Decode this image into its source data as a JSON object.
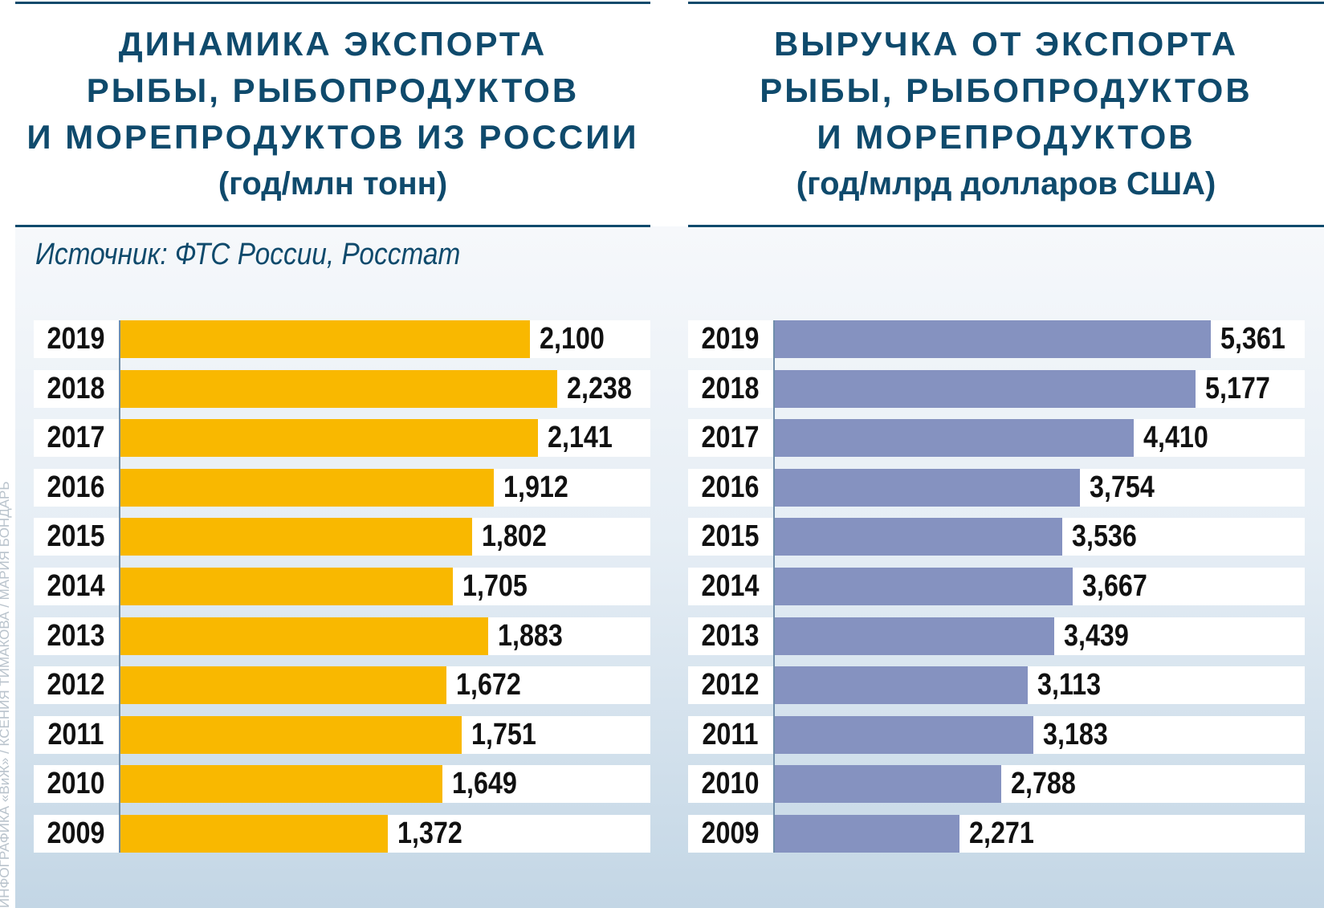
{
  "colors": {
    "title": "#0f4a6c",
    "left_bar": "#f9b800",
    "right_bar": "#8592c0"
  },
  "credit": "ИНФОГРАФИКА «ВиЖ» / КСЕНИЯ ТИМАКОВА / МАРИЯ БОНДАРЬ",
  "source": "Источник: ФТС России, Росстат",
  "chart_data": [
    {
      "type": "bar",
      "orientation": "horizontal",
      "title_lines": [
        "ДИНАМИКА ЭКСПОРТА",
        "РЫБЫ, РЫБОПРОДУКТОВ",
        "И МОРЕПРОДУКТОВ ИЗ РОССИИ"
      ],
      "subtitle": "(год/млн тонн)",
      "categories": [
        "2019",
        "2018",
        "2017",
        "2016",
        "2015",
        "2014",
        "2013",
        "2012",
        "2011",
        "2010",
        "2009"
      ],
      "values": [
        2.1,
        2.238,
        2.141,
        1.912,
        1.802,
        1.705,
        1.883,
        1.672,
        1.751,
        1.649,
        1.372
      ],
      "labels": [
        "2,100",
        "2,238",
        "2,141",
        "1,912",
        "1,802",
        "1,705",
        "1,883",
        "1,672",
        "1,751",
        "1,649",
        "1,372"
      ]
    },
    {
      "type": "bar",
      "orientation": "horizontal",
      "title_lines": [
        "ВЫРУЧКА ОТ ЭКСПОРТА",
        "РЫБЫ, РЫБОПРОДУКТОВ",
        "И МОРЕПРОДУКТОВ"
      ],
      "subtitle": "(год/млрд долларов США)",
      "categories": [
        "2019",
        "2018",
        "2017",
        "2016",
        "2015",
        "2014",
        "2013",
        "2012",
        "2011",
        "2010",
        "2009"
      ],
      "values": [
        5.361,
        5.177,
        4.41,
        3.754,
        3.536,
        3.667,
        3.439,
        3.113,
        3.183,
        2.788,
        2.271
      ],
      "labels": [
        "5,361",
        "5,177",
        "4,410",
        "3,754",
        "3,536",
        "3,667",
        "3,439",
        "3,113",
        "3,183",
        "2,788",
        "2,271"
      ]
    }
  ]
}
